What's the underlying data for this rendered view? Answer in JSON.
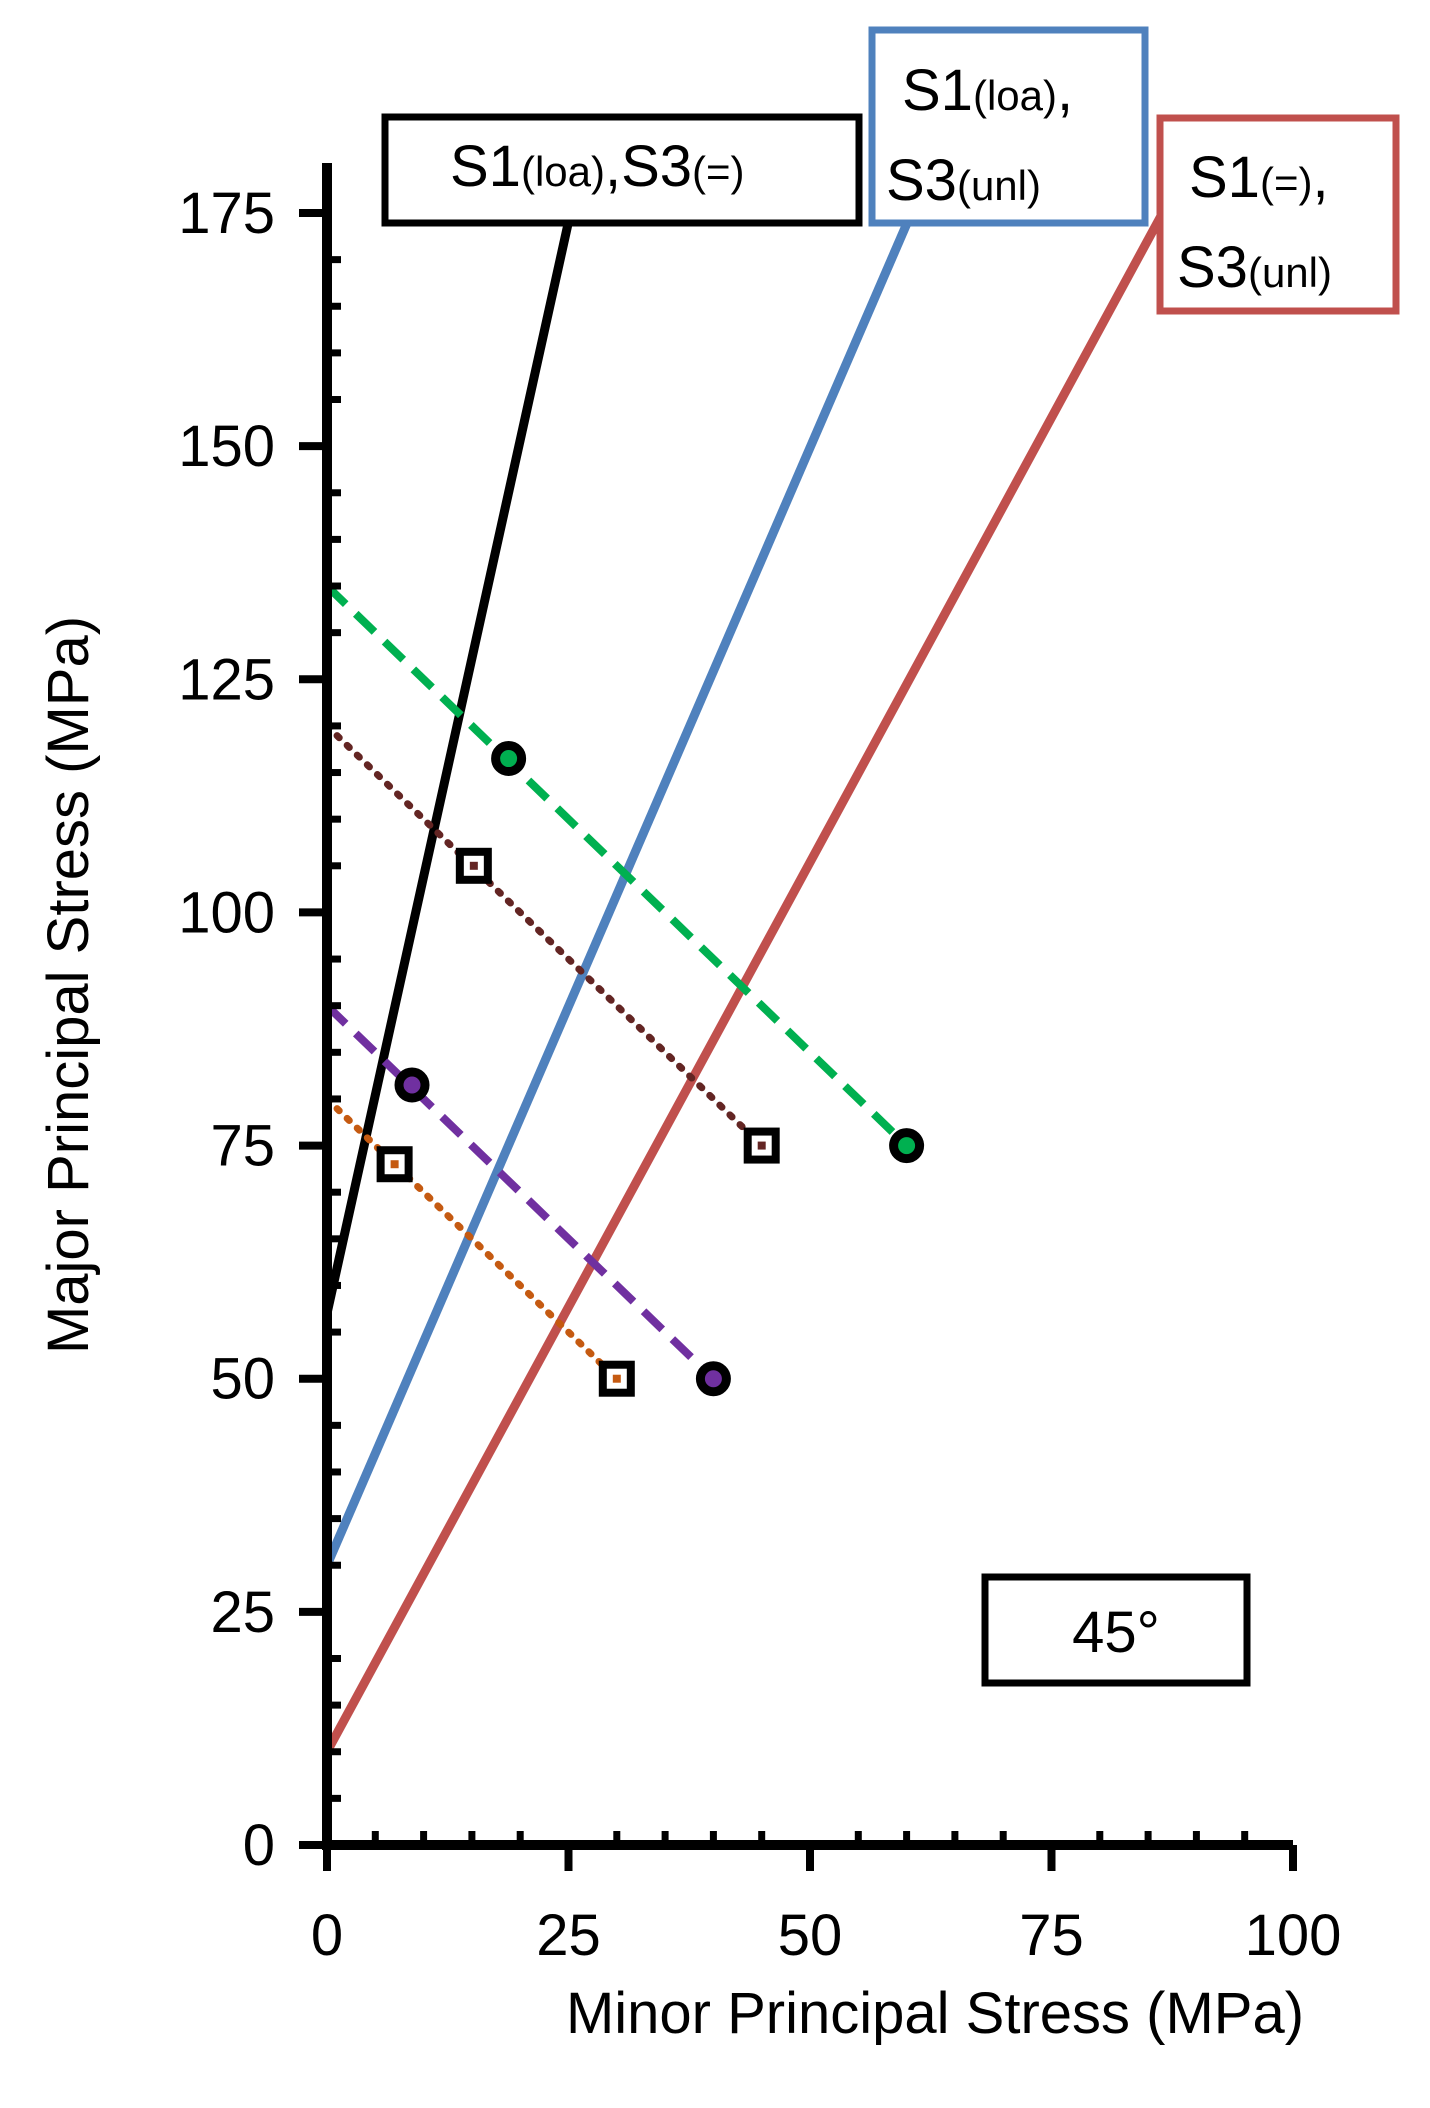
{
  "chart_data": {
    "type": "scatter",
    "xlabel": "Minor  Principal  Stress  (MPa)",
    "ylabel": "Major  Principal  Stress  (MPa)",
    "xlim": [
      0,
      100
    ],
    "ylim": [
      0,
      175
    ],
    "x_ticks": [
      "0",
      "25",
      "50",
      "75",
      "100"
    ],
    "y_ticks": [
      "0",
      "25",
      "50",
      "75",
      "100",
      "125",
      "150",
      "175"
    ],
    "grid": false,
    "annotation": "45°",
    "stress_paths": [
      {
        "style": "dashed",
        "color": "#00b050",
        "x": [
          0,
          60
        ],
        "y": [
          135,
          75
        ]
      },
      {
        "style": "dotted",
        "color": "#632523",
        "x": [
          0,
          45
        ],
        "y": [
          120,
          75
        ]
      },
      {
        "style": "dashed",
        "color": "#7030a0",
        "x": [
          0,
          40
        ],
        "y": [
          90,
          50
        ]
      },
      {
        "style": "dotted",
        "color": "#c55a11",
        "x": [
          0,
          30
        ],
        "y": [
          80,
          50
        ]
      }
    ],
    "envelopes": [
      {
        "label": "S1(loa),S3(=)",
        "color": "#000000",
        "x": [
          0,
          25.2
        ],
        "y": [
          57,
          175
        ]
      },
      {
        "label": "S1(loa),\nS3(unl)",
        "color": "#4f81bd",
        "x": [
          0,
          60.5
        ],
        "y": [
          30,
          175
        ]
      },
      {
        "label": "S1(=),\nS3(unl)",
        "color": "#c0504d",
        "x": [
          0,
          86.5
        ],
        "y": [
          10,
          175
        ]
      }
    ],
    "points": [
      {
        "marker": "circle",
        "color": "#00b050",
        "x": 18.8,
        "y": 116.5
      },
      {
        "marker": "circle",
        "color": "#00b050",
        "x": 60,
        "y": 75
      },
      {
        "marker": "square",
        "color": "#632523",
        "x": 15.2,
        "y": 105
      },
      {
        "marker": "square",
        "color": "#632523",
        "x": 45,
        "y": 75
      },
      {
        "marker": "circle",
        "color": "#7030a0",
        "x": 8.8,
        "y": 81.5
      },
      {
        "marker": "circle",
        "color": "#7030a0",
        "x": 40,
        "y": 50
      },
      {
        "marker": "square",
        "color": "#c55a11",
        "x": 7,
        "y": 73
      },
      {
        "marker": "square",
        "color": "#c55a11",
        "x": 30,
        "y": 50
      }
    ],
    "legend_boxes": [
      {
        "main1": "S1",
        "sub1": "(loa)",
        "mid": ",",
        "main2": "S3",
        "sub2": "(=)",
        "second_line": false,
        "color": "#000000"
      },
      {
        "main1": "S1",
        "sub1": "(loa)",
        "mid": ",",
        "main2": "S3",
        "sub2": "(unl)",
        "second_line": true,
        "color": "#4f81bd"
      },
      {
        "main1": "S1",
        "sub1": "(=)",
        "mid": ",",
        "main2": "S3",
        "sub2": "(unl)",
        "second_line": true,
        "color": "#c0504d"
      }
    ]
  }
}
